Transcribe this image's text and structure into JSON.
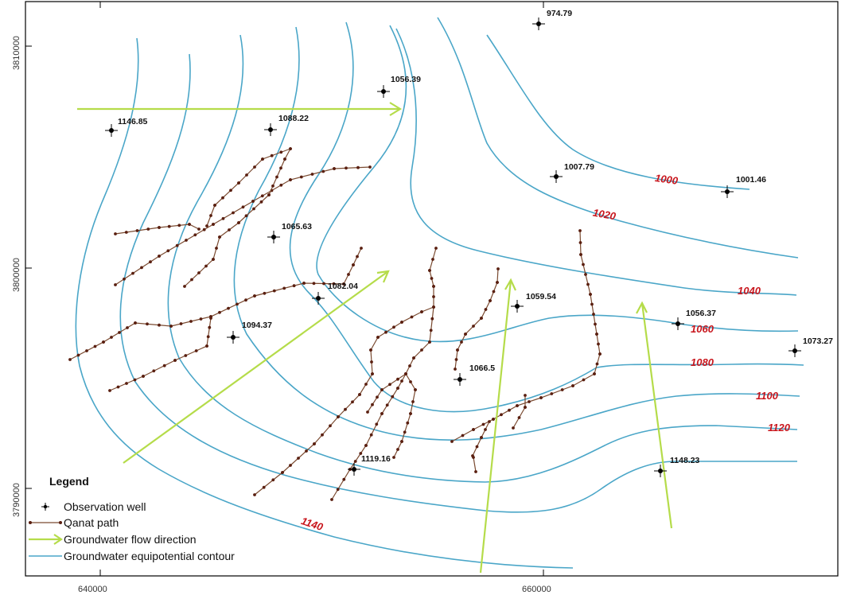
{
  "colors": {
    "contour": "#4aa6c8",
    "contour_label": "#c8161d",
    "qanat_line": "#7a4a30",
    "qanat_dot": "#5a1f10",
    "flow_arrow": "#b5dc4a",
    "well": "#000000"
  },
  "axes": {
    "x_ticks": [
      {
        "label": "640000",
        "value": 640000
      },
      {
        "label": "660000",
        "value": 660000
      }
    ],
    "y_ticks": [
      {
        "label": "3810000",
        "value": 3810000
      },
      {
        "label": "3800000",
        "value": 3800000
      },
      {
        "label": "3790000",
        "value": 3790000
      }
    ]
  },
  "observation_wells": [
    {
      "label": "974.79"
    },
    {
      "label": "1056.39"
    },
    {
      "label": "1146.85"
    },
    {
      "label": "1088.22"
    },
    {
      "label": "1007.79"
    },
    {
      "label": "1001.46"
    },
    {
      "label": "1065.63"
    },
    {
      "label": "1082.04"
    },
    {
      "label": "1094.37"
    },
    {
      "label": "1059.54"
    },
    {
      "label": "1056.37"
    },
    {
      "label": "1073.27"
    },
    {
      "label": "1066.5"
    },
    {
      "label": "1119.16"
    },
    {
      "label": "1148.23"
    }
  ],
  "contour_labels": [
    {
      "label": "1000"
    },
    {
      "label": "1020"
    },
    {
      "label": "1040"
    },
    {
      "label": "1060"
    },
    {
      "label": "1080"
    },
    {
      "label": "1100"
    },
    {
      "label": "1120"
    },
    {
      "label": "1140"
    }
  ],
  "legend": {
    "title": "Legend",
    "items": [
      {
        "label": "Observation well",
        "symbol": "well-icon"
      },
      {
        "label": "Qanat path",
        "symbol": "qanat-path-icon"
      },
      {
        "label": "Groundwater flow direction",
        "symbol": "flow-arrow-icon"
      },
      {
        "label": "Groundwater equipotential contour",
        "symbol": "contour-line-icon"
      }
    ]
  }
}
